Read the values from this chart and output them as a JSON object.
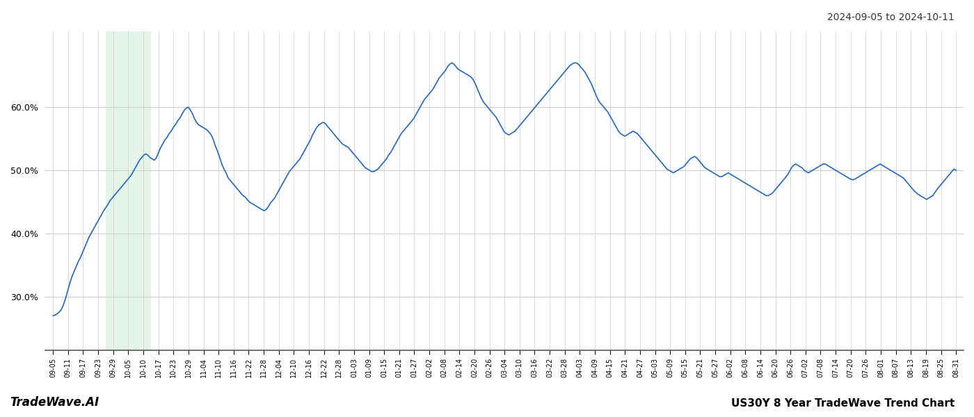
{
  "title_right": "2024-09-05 to 2024-10-11",
  "footer_left": "TradeWave.AI",
  "footer_right": "US30Y 8 Year TradeWave Trend Chart",
  "line_color": "#2266bb",
  "line_width": 1.2,
  "shading_color": "#d4edda",
  "shading_alpha": 0.6,
  "background_color": "#ffffff",
  "grid_color": "#cccccc",
  "ylim": [
    0.215,
    0.72
  ],
  "yticks": [
    0.3,
    0.4,
    0.5,
    0.6
  ],
  "x_labels": [
    "09-05",
    "09-11",
    "09-17",
    "09-23",
    "09-29",
    "10-05",
    "10-10",
    "10-17",
    "10-23",
    "10-29",
    "11-04",
    "11-10",
    "11-16",
    "11-22",
    "11-28",
    "12-04",
    "12-10",
    "12-16",
    "12-22",
    "12-28",
    "01-03",
    "01-09",
    "01-15",
    "01-21",
    "01-27",
    "02-02",
    "02-08",
    "02-14",
    "02-20",
    "02-26",
    "03-04",
    "03-10",
    "03-16",
    "03-22",
    "03-28",
    "04-03",
    "04-09",
    "04-15",
    "04-21",
    "04-27",
    "05-03",
    "05-09",
    "05-15",
    "05-21",
    "05-27",
    "06-02",
    "06-08",
    "06-14",
    "06-20",
    "06-26",
    "07-02",
    "07-08",
    "07-14",
    "07-20",
    "07-26",
    "08-01",
    "08-07",
    "08-13",
    "08-19",
    "08-25",
    "08-31"
  ],
  "shading_xstart": "09-29",
  "shading_xend": "10-10",
  "y_values": [
    0.27,
    0.271,
    0.273,
    0.276,
    0.28,
    0.288,
    0.298,
    0.31,
    0.322,
    0.332,
    0.34,
    0.348,
    0.356,
    0.362,
    0.37,
    0.378,
    0.386,
    0.394,
    0.4,
    0.406,
    0.412,
    0.418,
    0.424,
    0.43,
    0.436,
    0.441,
    0.446,
    0.452,
    0.456,
    0.46,
    0.464,
    0.468,
    0.472,
    0.476,
    0.48,
    0.484,
    0.488,
    0.492,
    0.498,
    0.504,
    0.51,
    0.516,
    0.52,
    0.524,
    0.526,
    0.524,
    0.52,
    0.518,
    0.516,
    0.52,
    0.528,
    0.536,
    0.542,
    0.548,
    0.552,
    0.558,
    0.562,
    0.568,
    0.572,
    0.578,
    0.582,
    0.588,
    0.594,
    0.598,
    0.6,
    0.596,
    0.59,
    0.582,
    0.576,
    0.572,
    0.57,
    0.568,
    0.566,
    0.564,
    0.56,
    0.556,
    0.548,
    0.538,
    0.53,
    0.52,
    0.51,
    0.502,
    0.496,
    0.488,
    0.484,
    0.48,
    0.476,
    0.472,
    0.468,
    0.464,
    0.46,
    0.458,
    0.454,
    0.45,
    0.448,
    0.446,
    0.444,
    0.442,
    0.44,
    0.438,
    0.436,
    0.438,
    0.442,
    0.448,
    0.452,
    0.456,
    0.462,
    0.468,
    0.474,
    0.48,
    0.486,
    0.492,
    0.498,
    0.502,
    0.506,
    0.51,
    0.514,
    0.518,
    0.524,
    0.53,
    0.536,
    0.542,
    0.548,
    0.556,
    0.562,
    0.568,
    0.572,
    0.574,
    0.576,
    0.574,
    0.57,
    0.566,
    0.562,
    0.558,
    0.554,
    0.55,
    0.546,
    0.542,
    0.54,
    0.538,
    0.536,
    0.532,
    0.528,
    0.524,
    0.52,
    0.516,
    0.512,
    0.508,
    0.504,
    0.502,
    0.5,
    0.498,
    0.498,
    0.5,
    0.502,
    0.506,
    0.51,
    0.514,
    0.518,
    0.524,
    0.528,
    0.534,
    0.54,
    0.546,
    0.552,
    0.558,
    0.562,
    0.566,
    0.57,
    0.574,
    0.578,
    0.582,
    0.588,
    0.594,
    0.6,
    0.606,
    0.612,
    0.616,
    0.62,
    0.624,
    0.628,
    0.634,
    0.64,
    0.646,
    0.65,
    0.654,
    0.658,
    0.664,
    0.668,
    0.67,
    0.668,
    0.664,
    0.66,
    0.658,
    0.656,
    0.654,
    0.652,
    0.65,
    0.648,
    0.644,
    0.638,
    0.63,
    0.622,
    0.614,
    0.608,
    0.604,
    0.6,
    0.596,
    0.592,
    0.588,
    0.584,
    0.578,
    0.572,
    0.566,
    0.56,
    0.558,
    0.556,
    0.558,
    0.56,
    0.562,
    0.566,
    0.57,
    0.574,
    0.578,
    0.582,
    0.586,
    0.59,
    0.594,
    0.598,
    0.602,
    0.606,
    0.61,
    0.614,
    0.618,
    0.622,
    0.626,
    0.63,
    0.634,
    0.638,
    0.642,
    0.646,
    0.65,
    0.654,
    0.658,
    0.662,
    0.666,
    0.668,
    0.67,
    0.67,
    0.668,
    0.664,
    0.66,
    0.656,
    0.65,
    0.644,
    0.638,
    0.63,
    0.622,
    0.614,
    0.608,
    0.604,
    0.6,
    0.596,
    0.592,
    0.586,
    0.58,
    0.574,
    0.568,
    0.562,
    0.558,
    0.556,
    0.554,
    0.556,
    0.558,
    0.56,
    0.562,
    0.56,
    0.558,
    0.554,
    0.55,
    0.546,
    0.542,
    0.538,
    0.534,
    0.53,
    0.526,
    0.522,
    0.518,
    0.514,
    0.51,
    0.506,
    0.502,
    0.5,
    0.498,
    0.496,
    0.498,
    0.5,
    0.502,
    0.504,
    0.506,
    0.51,
    0.514,
    0.518,
    0.52,
    0.522,
    0.52,
    0.516,
    0.512,
    0.508,
    0.504,
    0.502,
    0.5,
    0.498,
    0.496,
    0.494,
    0.492,
    0.49,
    0.49,
    0.492,
    0.494,
    0.496,
    0.494,
    0.492,
    0.49,
    0.488,
    0.486,
    0.484,
    0.482,
    0.48,
    0.478,
    0.476,
    0.474,
    0.472,
    0.47,
    0.468,
    0.466,
    0.464,
    0.462,
    0.46,
    0.46,
    0.462,
    0.464,
    0.468,
    0.472,
    0.476,
    0.48,
    0.484,
    0.488,
    0.492,
    0.498,
    0.504,
    0.508,
    0.51,
    0.508,
    0.506,
    0.504,
    0.5,
    0.498,
    0.496,
    0.498,
    0.5,
    0.502,
    0.504,
    0.506,
    0.508,
    0.51,
    0.51,
    0.508,
    0.506,
    0.504,
    0.502,
    0.5,
    0.498,
    0.496,
    0.494,
    0.492,
    0.49,
    0.488,
    0.486,
    0.485,
    0.486,
    0.488,
    0.49,
    0.492,
    0.494,
    0.496,
    0.498,
    0.5,
    0.502,
    0.504,
    0.506,
    0.508,
    0.51,
    0.508,
    0.506,
    0.504,
    0.502,
    0.5,
    0.498,
    0.496,
    0.494,
    0.492,
    0.49,
    0.488,
    0.484,
    0.48,
    0.476,
    0.472,
    0.468,
    0.465,
    0.462,
    0.46,
    0.458,
    0.456,
    0.454,
    0.456,
    0.458,
    0.46,
    0.465,
    0.47,
    0.474,
    0.478,
    0.482,
    0.486,
    0.49,
    0.494,
    0.498,
    0.502,
    0.5
  ]
}
